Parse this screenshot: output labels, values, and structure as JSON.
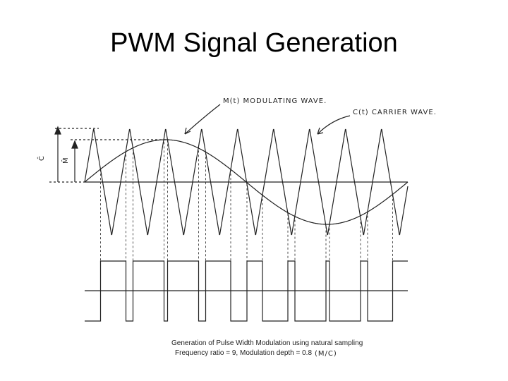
{
  "header": {
    "title": "PWM Signal Generation"
  },
  "diagram": {
    "modulating_label": "M(t) MODULATING WAVE.",
    "carrier_label": "C(t) CARRIER WAVE.",
    "carrier_amplitude_label": "Ĉ",
    "modulating_amplitude_label": "M̂",
    "caption": [
      "Generation of Pulse Width Modulation using natural sampling",
      "Frequency ratio = 9, Modulation depth = 0.8"
    ],
    "depth_note": "(M/C)"
  }
}
